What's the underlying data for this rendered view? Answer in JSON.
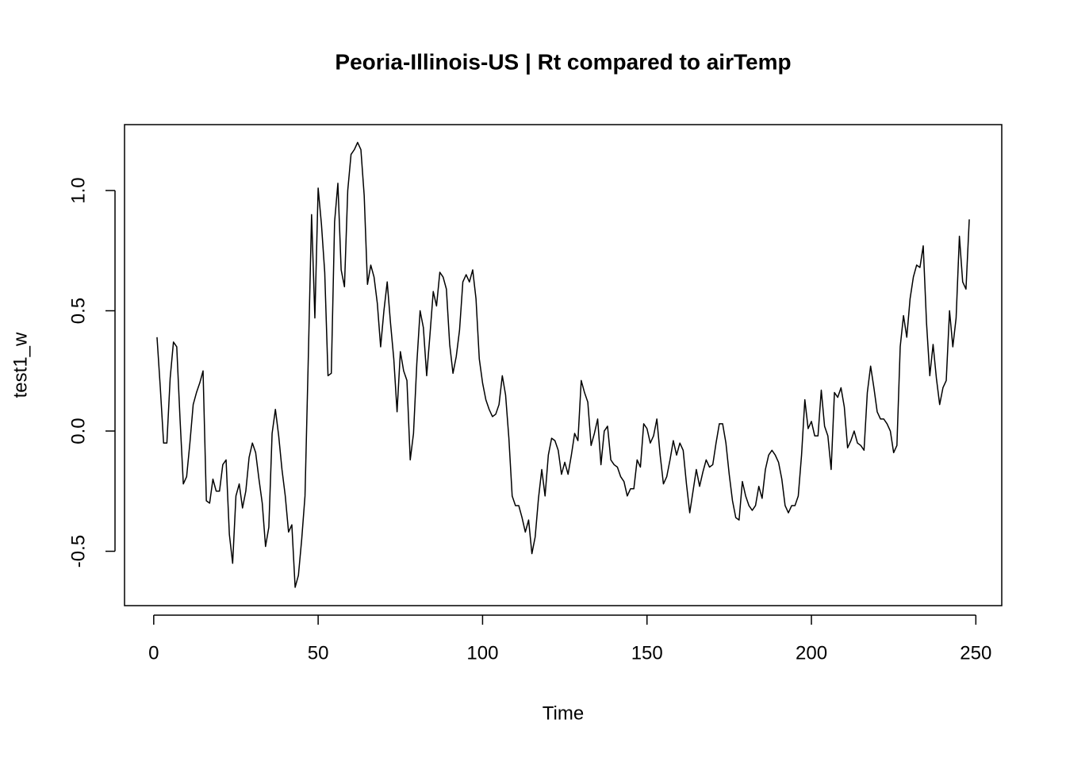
{
  "chart_data": {
    "type": "line",
    "title": "Peoria-Illinois-US | Rt compared to airTemp",
    "xlabel": "Time",
    "ylabel": "test1_w",
    "xlim": [
      -8.88,
      257.88
    ],
    "ylim": [
      -0.726,
      1.274
    ],
    "xticks": [
      0,
      50,
      100,
      150,
      200,
      250
    ],
    "yticks": [
      -0.5,
      {
        "value": 0,
        "label": "0.0"
      },
      0.5,
      {
        "value": 1,
        "label": "1.0"
      }
    ],
    "series": [
      {
        "color": "#000000",
        "x": [
          1,
          2,
          3,
          4,
          5,
          6,
          7,
          8,
          9,
          10,
          11,
          12,
          13,
          14,
          15,
          16,
          17,
          18,
          19,
          20,
          21,
          22,
          23,
          24,
          25,
          26,
          27,
          28,
          29,
          30,
          31,
          32,
          33,
          34,
          35,
          36,
          37,
          38,
          39,
          40,
          41,
          42,
          43,
          44,
          45,
          46,
          47,
          48,
          49,
          50,
          51,
          52,
          53,
          54,
          55,
          56,
          57,
          58,
          59,
          60,
          61,
          62,
          63,
          64,
          65,
          66,
          67,
          68,
          69,
          70,
          71,
          72,
          73,
          74,
          75,
          76,
          77,
          78,
          79,
          80,
          81,
          82,
          83,
          84,
          85,
          86,
          87,
          88,
          89,
          90,
          91,
          92,
          93,
          94,
          95,
          96,
          97,
          98,
          99,
          100,
          101,
          102,
          103,
          104,
          105,
          106,
          107,
          108,
          109,
          110,
          111,
          112,
          113,
          114,
          115,
          116,
          117,
          118,
          119,
          120,
          121,
          122,
          123,
          124,
          125,
          126,
          127,
          128,
          129,
          130,
          131,
          132,
          133,
          134,
          135,
          136,
          137,
          138,
          139,
          140,
          141,
          142,
          143,
          144,
          145,
          146,
          147,
          148,
          149,
          150,
          151,
          152,
          153,
          154,
          155,
          156,
          157,
          158,
          159,
          160,
          161,
          162,
          163,
          164,
          165,
          166,
          167,
          168,
          169,
          170,
          171,
          172,
          173,
          174,
          175,
          176,
          177,
          178,
          179,
          180,
          181,
          182,
          183,
          184,
          185,
          186,
          187,
          188,
          189,
          190,
          191,
          192,
          193,
          194,
          195,
          196,
          197,
          198,
          199,
          200,
          201,
          202,
          203,
          204,
          205,
          206,
          207,
          208,
          209,
          210,
          211,
          212,
          213,
          214,
          215,
          216,
          217,
          218,
          219,
          220,
          221,
          222,
          223,
          224,
          225,
          226,
          227,
          228,
          229,
          230,
          231,
          232,
          233,
          234,
          235,
          236,
          237,
          238,
          239,
          240,
          241,
          242,
          243,
          244,
          245,
          246,
          247,
          248
        ],
        "values": [
          0.39,
          0.18,
          -0.05,
          -0.05,
          0.22,
          0.37,
          0.35,
          0.05,
          -0.22,
          -0.19,
          -0.05,
          0.11,
          0.16,
          0.2,
          0.25,
          -0.29,
          -0.3,
          -0.2,
          -0.25,
          -0.25,
          -0.14,
          -0.12,
          -0.43,
          -0.55,
          -0.27,
          -0.22,
          -0.32,
          -0.25,
          -0.11,
          -0.05,
          -0.09,
          -0.2,
          -0.3,
          -0.48,
          -0.4,
          -0.01,
          0.09,
          -0.02,
          -0.16,
          -0.27,
          -0.42,
          -0.39,
          -0.65,
          -0.6,
          -0.45,
          -0.27,
          0.3,
          0.9,
          0.47,
          1.01,
          0.86,
          0.66,
          0.23,
          0.24,
          0.87,
          1.03,
          0.67,
          0.6,
          1.0,
          1.15,
          1.17,
          1.2,
          1.17,
          0.98,
          0.61,
          0.69,
          0.64,
          0.53,
          0.35,
          0.5,
          0.62,
          0.45,
          0.3,
          0.08,
          0.33,
          0.25,
          0.21,
          -0.12,
          -0.01,
          0.28,
          0.5,
          0.43,
          0.23,
          0.4,
          0.58,
          0.52,
          0.66,
          0.64,
          0.59,
          0.36,
          0.24,
          0.31,
          0.42,
          0.62,
          0.65,
          0.62,
          0.67,
          0.55,
          0.3,
          0.2,
          0.13,
          0.09,
          0.06,
          0.07,
          0.11,
          0.23,
          0.15,
          -0.03,
          -0.27,
          -0.31,
          -0.31,
          -0.36,
          -0.42,
          -0.37,
          -0.51,
          -0.44,
          -0.28,
          -0.16,
          -0.27,
          -0.1,
          -0.03,
          -0.04,
          -0.08,
          -0.18,
          -0.13,
          -0.18,
          -0.1,
          -0.01,
          -0.04,
          0.21,
          0.16,
          0.12,
          -0.06,
          -0.01,
          0.05,
          -0.14,
          0.0,
          0.02,
          -0.12,
          -0.14,
          -0.15,
          -0.19,
          -0.21,
          -0.27,
          -0.24,
          -0.24,
          -0.12,
          -0.15,
          0.03,
          0.01,
          -0.05,
          -0.02,
          0.05,
          -0.1,
          -0.22,
          -0.19,
          -0.12,
          -0.04,
          -0.1,
          -0.05,
          -0.08,
          -0.22,
          -0.34,
          -0.25,
          -0.16,
          -0.23,
          -0.17,
          -0.12,
          -0.15,
          -0.14,
          -0.05,
          0.03,
          0.03,
          -0.05,
          -0.18,
          -0.29,
          -0.36,
          -0.37,
          -0.21,
          -0.27,
          -0.31,
          -0.33,
          -0.31,
          -0.23,
          -0.28,
          -0.16,
          -0.1,
          -0.08,
          -0.1,
          -0.13,
          -0.2,
          -0.31,
          -0.34,
          -0.31,
          -0.31,
          -0.27,
          -0.1,
          0.13,
          0.01,
          0.04,
          -0.02,
          -0.02,
          0.17,
          0.02,
          -0.02,
          -0.16,
          0.16,
          0.14,
          0.18,
          0.1,
          -0.07,
          -0.04,
          0.0,
          -0.05,
          -0.06,
          -0.08,
          0.16,
          0.27,
          0.18,
          0.08,
          0.05,
          0.05,
          0.03,
          0.0,
          -0.09,
          -0.06,
          0.35,
          0.48,
          0.39,
          0.55,
          0.64,
          0.69,
          0.68,
          0.77,
          0.45,
          0.23,
          0.36,
          0.22,
          0.11,
          0.18,
          0.21,
          0.5,
          0.35,
          0.47,
          0.81,
          0.62,
          0.59,
          0.88
        ]
      }
    ]
  }
}
